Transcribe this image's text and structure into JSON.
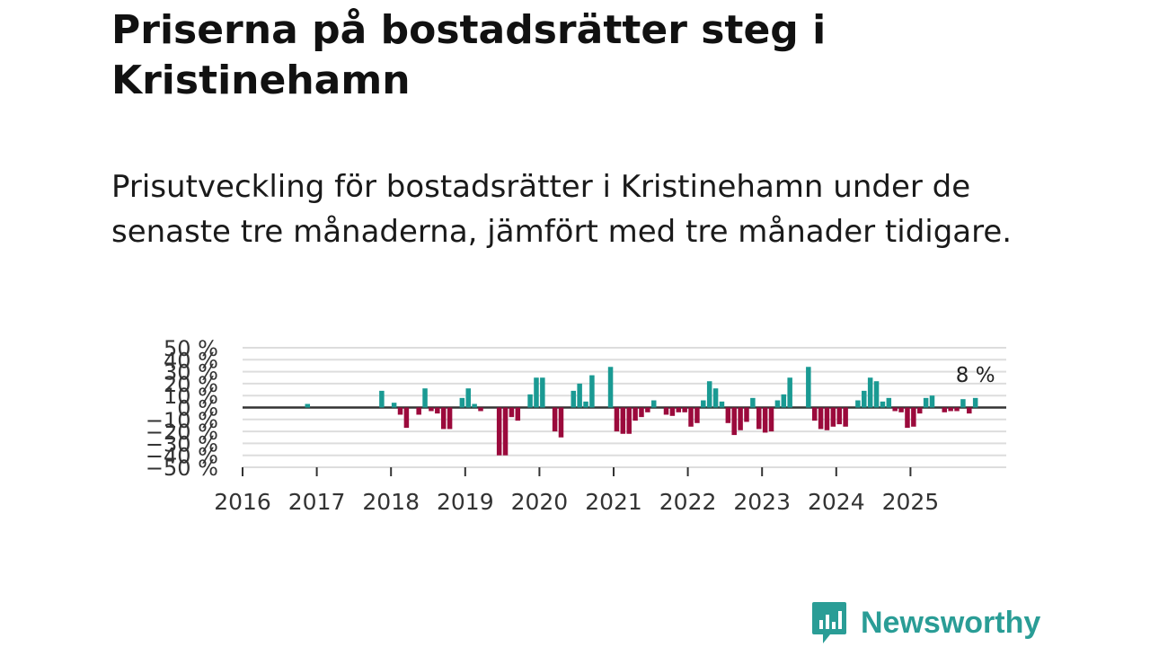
{
  "title": "Priserna på bostadsrätter steg i Kristinehamn",
  "subtitle": "Prisutveckling för bostadsrätter i Kristinehamn under de senaste tre månaderna, jämfört med tre månader tidigare.",
  "brand": {
    "name": "Newsworthy",
    "color": "#2a9d96"
  },
  "colors": {
    "positive": "#1a9a93",
    "negative": "#9b0a3c",
    "zero_line": "#333333",
    "grid": "#dddddd"
  },
  "chart_data": {
    "type": "bar",
    "title": "",
    "xlabel": "",
    "ylabel": "",
    "ylim": [
      -50,
      50
    ],
    "y_ticks": [
      50,
      40,
      30,
      20,
      10,
      0,
      -10,
      -20,
      -30,
      -40,
      -50
    ],
    "y_tick_labels": [
      "50 %",
      "40 %",
      "30 %",
      "20 %",
      "10 %",
      "0 %",
      "−10 %",
      "−20 %",
      "−30 %",
      "−40 %",
      "−50 %"
    ],
    "x_tick_labels": [
      "2016",
      "2017",
      "2018",
      "2019",
      "2020",
      "2021",
      "2022",
      "2023",
      "2024",
      "2025"
    ],
    "x_start_year": 2016,
    "x_end_year": 2026.3,
    "last_value_label": "8 %",
    "series": [
      {
        "name": "Prisutveckling",
        "points": [
          {
            "date": "2016-11",
            "value": 3
          },
          {
            "date": "2017-11",
            "value": 14
          },
          {
            "date": "2018-01",
            "value": 4
          },
          {
            "date": "2018-02",
            "value": -6
          },
          {
            "date": "2018-03",
            "value": -17
          },
          {
            "date": "2018-05",
            "value": -6
          },
          {
            "date": "2018-06",
            "value": 16
          },
          {
            "date": "2018-07",
            "value": -3
          },
          {
            "date": "2018-08",
            "value": -5
          },
          {
            "date": "2018-09",
            "value": -18
          },
          {
            "date": "2018-10",
            "value": -18
          },
          {
            "date": "2018-12",
            "value": 8
          },
          {
            "date": "2019-01",
            "value": 16
          },
          {
            "date": "2019-02",
            "value": 3
          },
          {
            "date": "2019-03",
            "value": -3
          },
          {
            "date": "2019-06",
            "value": -40
          },
          {
            "date": "2019-07",
            "value": -40
          },
          {
            "date": "2019-08",
            "value": -8
          },
          {
            "date": "2019-09",
            "value": -11
          },
          {
            "date": "2019-11",
            "value": 11
          },
          {
            "date": "2019-12",
            "value": 25
          },
          {
            "date": "2020-01",
            "value": 25
          },
          {
            "date": "2020-03",
            "value": -20
          },
          {
            "date": "2020-04",
            "value": -25
          },
          {
            "date": "2020-06",
            "value": 14
          },
          {
            "date": "2020-07",
            "value": 20
          },
          {
            "date": "2020-08",
            "value": 5
          },
          {
            "date": "2020-09",
            "value": 27
          },
          {
            "date": "2020-12",
            "value": 34
          },
          {
            "date": "2021-01",
            "value": -20
          },
          {
            "date": "2021-02",
            "value": -22
          },
          {
            "date": "2021-03",
            "value": -22
          },
          {
            "date": "2021-04",
            "value": -11
          },
          {
            "date": "2021-05",
            "value": -8
          },
          {
            "date": "2021-06",
            "value": -4
          },
          {
            "date": "2021-07",
            "value": 6
          },
          {
            "date": "2021-09",
            "value": -6
          },
          {
            "date": "2021-10",
            "value": -7
          },
          {
            "date": "2021-11",
            "value": -4
          },
          {
            "date": "2021-12",
            "value": -4
          },
          {
            "date": "2022-01",
            "value": -16
          },
          {
            "date": "2022-02",
            "value": -13
          },
          {
            "date": "2022-03",
            "value": 6
          },
          {
            "date": "2022-04",
            "value": 22
          },
          {
            "date": "2022-05",
            "value": 16
          },
          {
            "date": "2022-06",
            "value": 5
          },
          {
            "date": "2022-07",
            "value": -13
          },
          {
            "date": "2022-08",
            "value": -23
          },
          {
            "date": "2022-09",
            "value": -19
          },
          {
            "date": "2022-10",
            "value": -12
          },
          {
            "date": "2022-11",
            "value": 8
          },
          {
            "date": "2022-12",
            "value": -18
          },
          {
            "date": "2023-01",
            "value": -21
          },
          {
            "date": "2023-02",
            "value": -20
          },
          {
            "date": "2023-03",
            "value": 6
          },
          {
            "date": "2023-04",
            "value": 11
          },
          {
            "date": "2023-05",
            "value": 25
          },
          {
            "date": "2023-08",
            "value": 34
          },
          {
            "date": "2023-09",
            "value": -11
          },
          {
            "date": "2023-10",
            "value": -18
          },
          {
            "date": "2023-11",
            "value": -19
          },
          {
            "date": "2023-12",
            "value": -16
          },
          {
            "date": "2024-01",
            "value": -14
          },
          {
            "date": "2024-02",
            "value": -16
          },
          {
            "date": "2024-04",
            "value": 6
          },
          {
            "date": "2024-05",
            "value": 14
          },
          {
            "date": "2024-06",
            "value": 25
          },
          {
            "date": "2024-07",
            "value": 22
          },
          {
            "date": "2024-08",
            "value": 5
          },
          {
            "date": "2024-09",
            "value": 8
          },
          {
            "date": "2024-10",
            "value": -3
          },
          {
            "date": "2024-11",
            "value": -4
          },
          {
            "date": "2024-12",
            "value": -17
          },
          {
            "date": "2025-01",
            "value": -16
          },
          {
            "date": "2025-02",
            "value": -5
          },
          {
            "date": "2025-03",
            "value": 8
          },
          {
            "date": "2025-04",
            "value": 10
          },
          {
            "date": "2025-06",
            "value": -4
          },
          {
            "date": "2025-07",
            "value": -3
          },
          {
            "date": "2025-08",
            "value": -3
          },
          {
            "date": "2025-09",
            "value": 7
          },
          {
            "date": "2025-10",
            "value": -5
          },
          {
            "date": "2025-11",
            "value": 8
          }
        ]
      }
    ]
  }
}
